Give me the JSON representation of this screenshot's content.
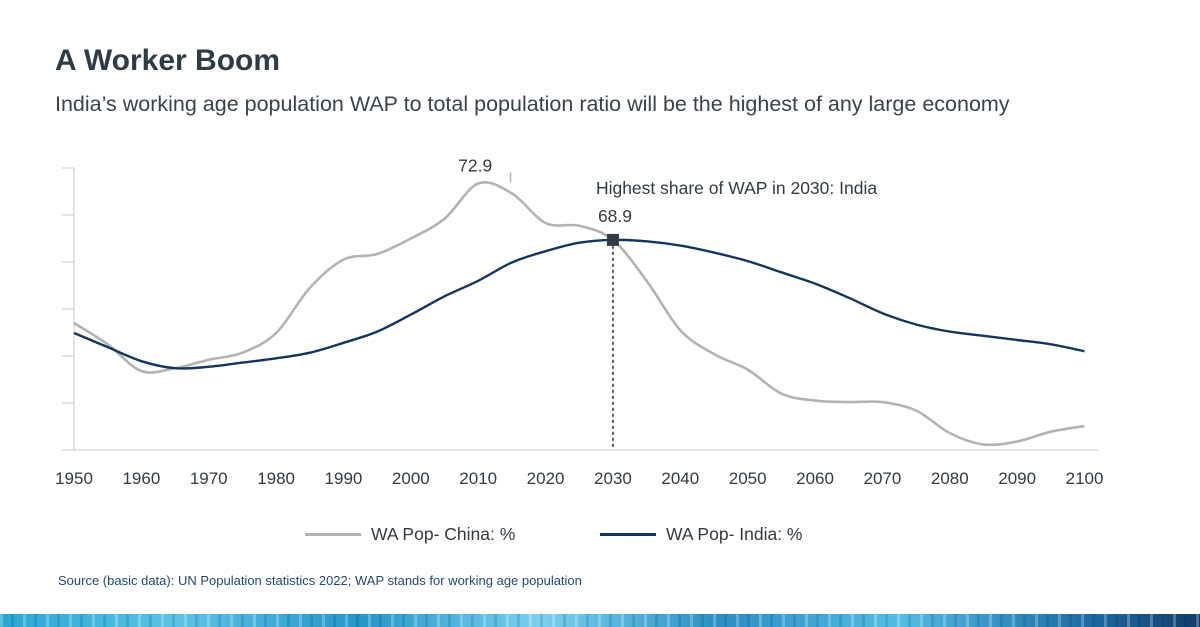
{
  "header": {
    "title": "A Worker Boom",
    "subtitle": "India’s working age population WAP to total population ratio will be the highest of any large economy"
  },
  "chart_data": {
    "type": "line",
    "x": [
      1950,
      1955,
      1960,
      1965,
      1970,
      1975,
      1980,
      1985,
      1990,
      1995,
      2000,
      2005,
      2010,
      2015,
      2020,
      2025,
      2030,
      2035,
      2040,
      2045,
      2050,
      2055,
      2060,
      2065,
      2070,
      2075,
      2080,
      2085,
      2090,
      2095,
      2100
    ],
    "xticks": [
      1950,
      1960,
      1970,
      1980,
      1990,
      2000,
      2010,
      2020,
      2030,
      2040,
      2050,
      2060,
      2070,
      2080,
      2090,
      2100
    ],
    "xlim": [
      1950,
      2102
    ],
    "ylim": [
      54,
      74
    ],
    "grid": false,
    "series": [
      {
        "name": "WA Pop- China: %",
        "color": "#b3b3b3",
        "values": [
          63.0,
          61.5,
          59.6,
          59.8,
          60.4,
          60.9,
          62.3,
          65.5,
          67.5,
          67.9,
          69.0,
          70.4,
          72.9,
          72.2,
          70.1,
          69.9,
          68.9,
          66.0,
          62.5,
          60.8,
          59.7,
          58.0,
          57.5,
          57.4,
          57.4,
          56.8,
          55.2,
          54.4,
          54.6,
          55.3,
          55.7
        ]
      },
      {
        "name": "WA Pop- India: %",
        "color": "#14365e",
        "values": [
          62.3,
          61.3,
          60.3,
          59.8,
          59.9,
          60.2,
          60.5,
          60.9,
          61.6,
          62.4,
          63.6,
          64.9,
          66.0,
          67.3,
          68.1,
          68.7,
          68.9,
          68.8,
          68.5,
          68.0,
          67.4,
          66.6,
          65.8,
          64.8,
          63.7,
          62.9,
          62.4,
          62.1,
          61.8,
          61.5,
          61.0
        ]
      }
    ],
    "annotations": [
      {
        "text": "72.9",
        "x": 2010,
        "y": 72.9
      },
      {
        "text": "Highest share of WAP in 2030: India",
        "x": 2030
      },
      {
        "text": "68.9",
        "x": 2030,
        "y": 68.9
      }
    ]
  },
  "legend": {
    "china": "WA Pop- China: %",
    "india": "WA Pop- India: %"
  },
  "footer": {
    "source": "Source (basic data): UN Population statistics 2022; WAP stands for working age population"
  }
}
